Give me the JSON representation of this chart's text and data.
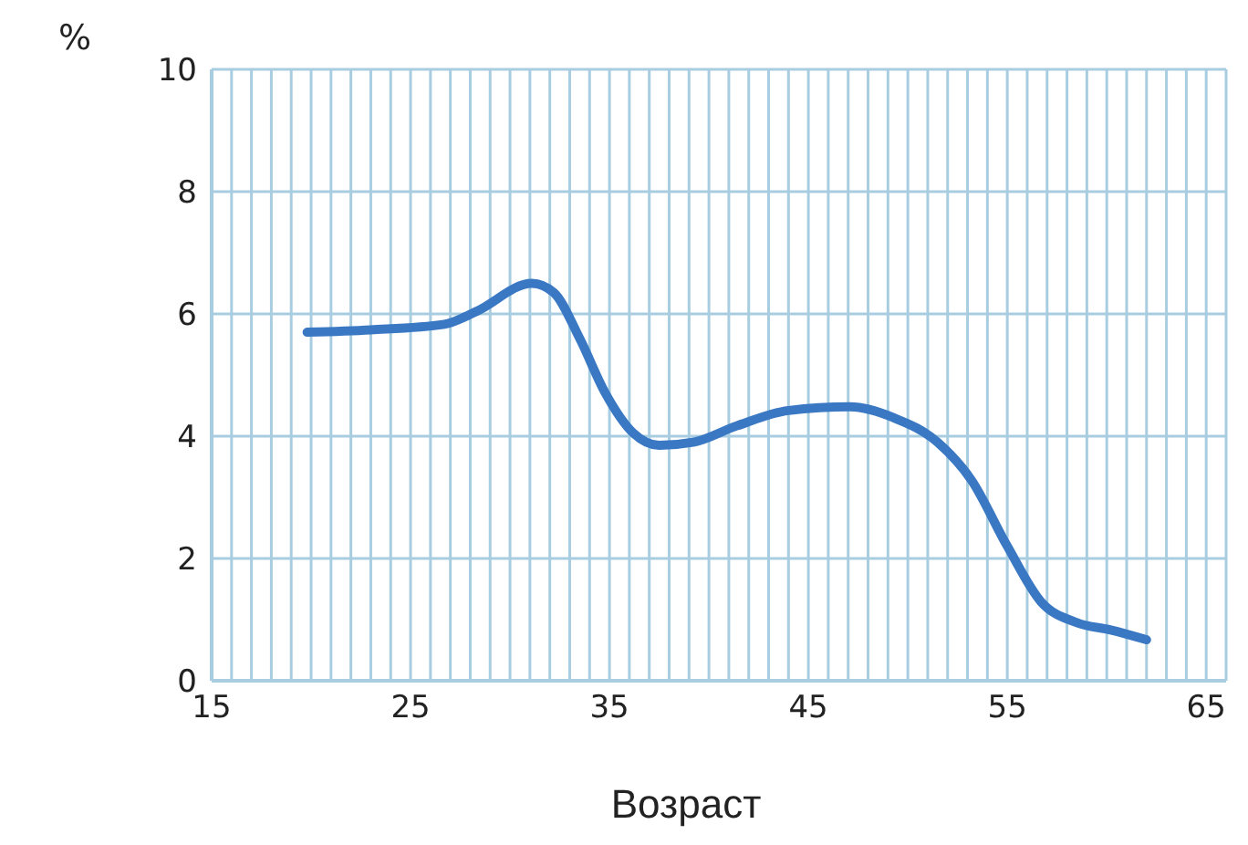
{
  "chart_data": {
    "type": "line",
    "xlabel": "Возраст",
    "ylabel": "%",
    "x": [
      19.8,
      23,
      26.7,
      28.3,
      31.1,
      32.2,
      33.5,
      34.8,
      36.2,
      37.5,
      39.2,
      41.4,
      44,
      47.1,
      49.3,
      51.5,
      53.2,
      55,
      56.7,
      58.5,
      60.2,
      62
    ],
    "series": [
      {
        "color": "#3a78c4",
        "values": [
          5.7,
          5.74,
          5.83,
          6.04,
          6.5,
          6.35,
          5.6,
          4.7,
          4.05,
          3.85,
          3.9,
          4.17,
          4.42,
          4.48,
          4.3,
          3.9,
          3.28,
          2.2,
          1.29,
          0.95,
          0.83,
          0.67
        ]
      }
    ],
    "xlim": [
      15,
      66
    ],
    "xticks": [
      15,
      {
        "value": 16,
        "label": null
      },
      {
        "value": 17,
        "label": null
      },
      {
        "value": 18,
        "label": null
      },
      {
        "value": 19,
        "label": null
      },
      {
        "value": 20,
        "label": null
      },
      {
        "value": 21,
        "label": null
      },
      {
        "value": 22,
        "label": null
      },
      {
        "value": 23,
        "label": null
      },
      {
        "value": 24,
        "label": null
      },
      25,
      {
        "value": 26,
        "label": null
      },
      {
        "value": 27,
        "label": null
      },
      {
        "value": 28,
        "label": null
      },
      {
        "value": 29,
        "label": null
      },
      {
        "value": 30,
        "label": null
      },
      {
        "value": 31,
        "label": null
      },
      {
        "value": 32,
        "label": null
      },
      {
        "value": 33,
        "label": null
      },
      {
        "value": 34,
        "label": null
      },
      35,
      {
        "value": 36,
        "label": null
      },
      {
        "value": 37,
        "label": null
      },
      {
        "value": 38,
        "label": null
      },
      {
        "value": 39,
        "label": null
      },
      {
        "value": 40,
        "label": null
      },
      {
        "value": 41,
        "label": null
      },
      {
        "value": 42,
        "label": null
      },
      {
        "value": 43,
        "label": null
      },
      {
        "value": 44,
        "label": null
      },
      45,
      {
        "value": 46,
        "label": null
      },
      {
        "value": 47,
        "label": null
      },
      {
        "value": 48,
        "label": null
      },
      {
        "value": 49,
        "label": null
      },
      {
        "value": 50,
        "label": null
      },
      {
        "value": 51,
        "label": null
      },
      {
        "value": 52,
        "label": null
      },
      {
        "value": 53,
        "label": null
      },
      {
        "value": 54,
        "label": null
      },
      55,
      {
        "value": 56,
        "label": null
      },
      {
        "value": 57,
        "label": null
      },
      {
        "value": 58,
        "label": null
      },
      {
        "value": 59,
        "label": null
      },
      {
        "value": 60,
        "label": null
      },
      {
        "value": 61,
        "label": null
      },
      {
        "value": 62,
        "label": null
      },
      {
        "value": 63,
        "label": null
      },
      {
        "value": 64,
        "label": null
      },
      65
    ],
    "ylim": [
      0,
      10
    ],
    "yticks": [
      0,
      2,
      4,
      6,
      8,
      10
    ],
    "grid": true,
    "marker": "none",
    "line_style": "solid"
  }
}
